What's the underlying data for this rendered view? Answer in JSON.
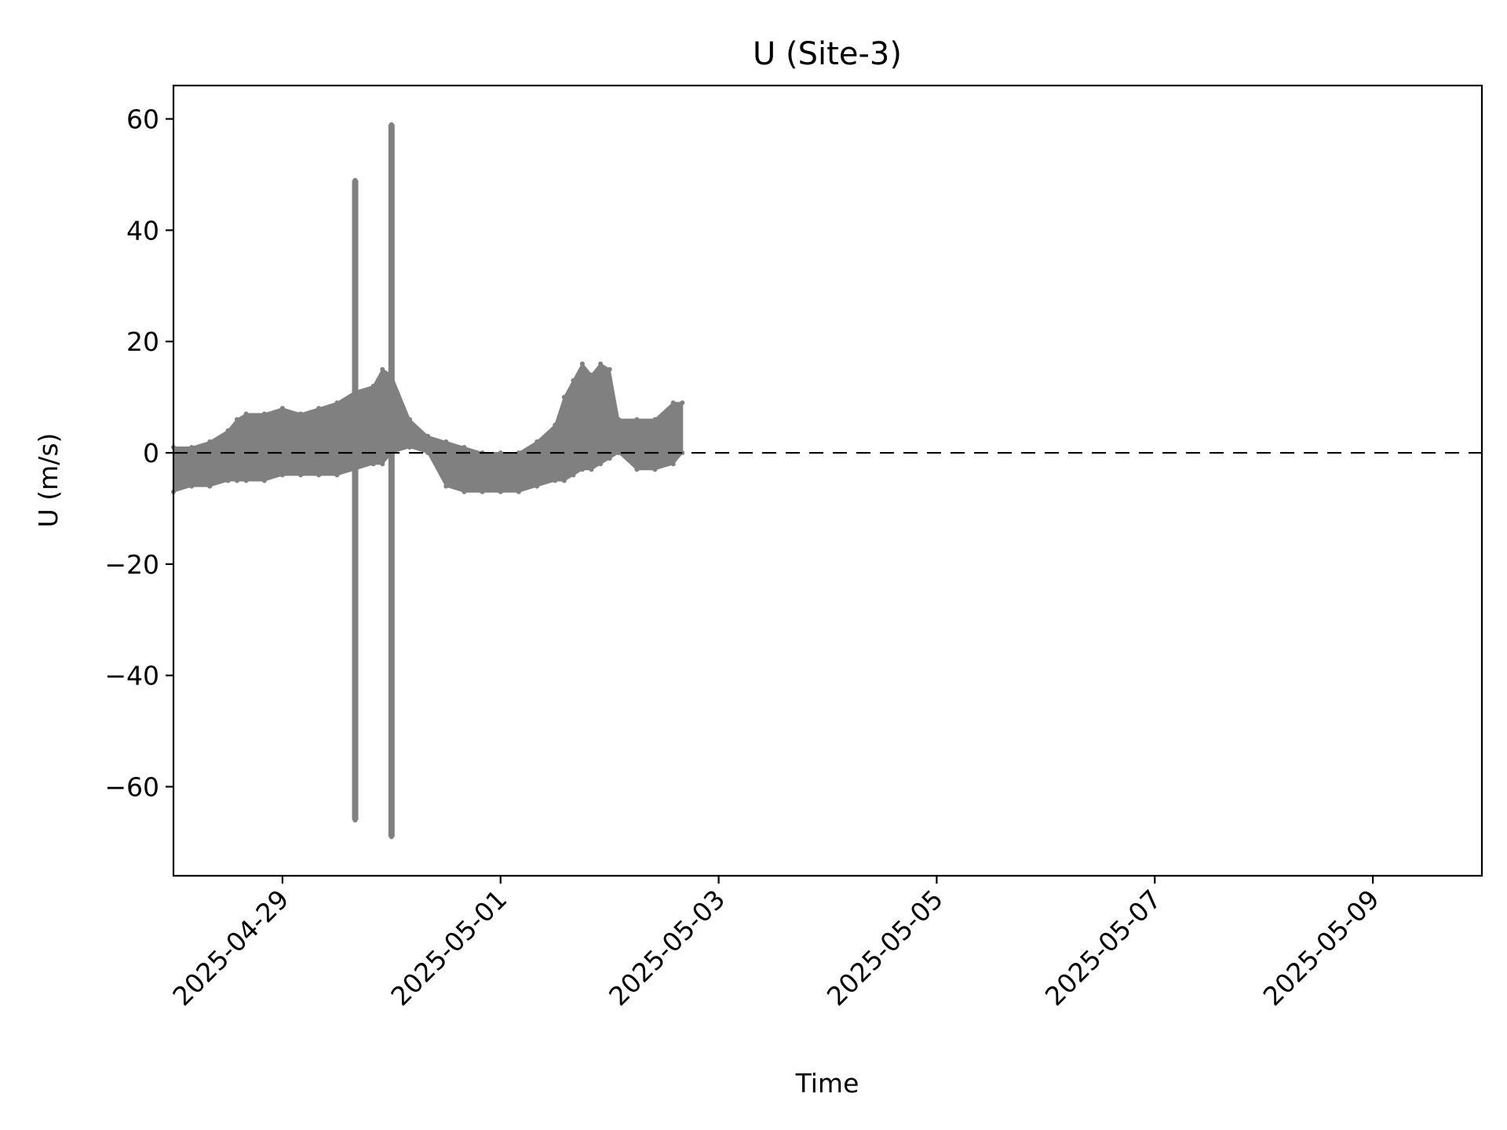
{
  "chart_data": {
    "type": "scatter",
    "title": "U (Site-3)",
    "xlabel": "Time",
    "ylabel": "U (m/s)",
    "xlim": [
      "2025-04-28T00:00",
      "2025-05-10T00:00"
    ],
    "ylim": [
      -76,
      66
    ],
    "x_ticks": [
      "2025-04-29",
      "2025-05-01",
      "2025-05-03",
      "2025-05-05",
      "2025-05-07",
      "2025-05-09"
    ],
    "y_ticks": [
      60,
      40,
      20,
      0,
      -20,
      -40,
      -60
    ],
    "y_tick_labels": [
      "60",
      "40",
      "20",
      "0",
      "−20",
      "−40",
      "−60"
    ],
    "grid": false,
    "reference_line": {
      "y": 0,
      "style": "dashed",
      "color": "#000000"
    },
    "point_color": "#808080",
    "series": [
      {
        "points_min_max": [
          [
            "2025-04-28T00:00",
            -7,
            1
          ],
          [
            "2025-04-28T04:00",
            -6,
            1
          ],
          [
            "2025-04-28T08:00",
            -6,
            2
          ],
          [
            "2025-04-28T12:00",
            -5,
            4
          ],
          [
            "2025-04-28T14:00",
            -5,
            6
          ],
          [
            "2025-04-28T16:00",
            -5,
            7
          ],
          [
            "2025-04-28T20:00",
            -5,
            7
          ],
          [
            "2025-04-29T00:00",
            -4,
            8
          ],
          [
            "2025-04-29T04:00",
            -4,
            7
          ],
          [
            "2025-04-29T08:00",
            -4,
            8
          ],
          [
            "2025-04-29T12:00",
            -4,
            9
          ],
          [
            "2025-04-29T16:00",
            -3,
            11
          ],
          [
            "2025-04-29T20:00",
            -2,
            12
          ],
          [
            "2025-04-29T22:00",
            -2,
            15
          ],
          [
            "2025-04-30T00:00",
            0,
            14
          ],
          [
            "2025-04-30T04:00",
            1,
            6
          ],
          [
            "2025-04-30T08:00",
            0,
            3
          ],
          [
            "2025-04-30T12:00",
            -6,
            2
          ],
          [
            "2025-04-30T16:00",
            -7,
            1
          ],
          [
            "2025-04-30T20:00",
            -7,
            0
          ],
          [
            "2025-05-01T00:00",
            -7,
            0
          ],
          [
            "2025-05-01T04:00",
            -7,
            0
          ],
          [
            "2025-05-01T08:00",
            -6,
            2
          ],
          [
            "2025-05-01T12:00",
            -5,
            5
          ],
          [
            "2025-05-01T14:00",
            -5,
            10
          ],
          [
            "2025-05-01T16:00",
            -4,
            13
          ],
          [
            "2025-05-01T18:00",
            -3,
            16
          ],
          [
            "2025-05-01T20:00",
            -3,
            14
          ],
          [
            "2025-05-01T22:00",
            -2,
            16
          ],
          [
            "2025-05-02T00:00",
            -1,
            15
          ],
          [
            "2025-05-02T02:00",
            0,
            6
          ],
          [
            "2025-05-02T06:00",
            -3,
            6
          ],
          [
            "2025-05-02T10:00",
            -3,
            6
          ],
          [
            "2025-05-02T14:00",
            -2,
            9
          ],
          [
            "2025-05-02T16:00",
            0,
            9
          ]
        ]
      },
      {
        "spikes": [
          {
            "x": "2025-04-29T16:00",
            "low": -66,
            "high": 49
          },
          {
            "x": "2025-04-30T00:00",
            "low": -69,
            "high": 59
          }
        ]
      }
    ]
  }
}
